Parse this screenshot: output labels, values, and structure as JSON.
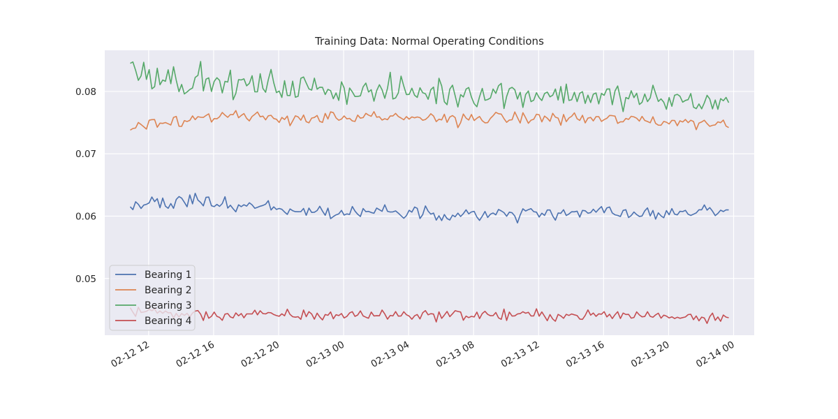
{
  "chart_data": {
    "type": "line",
    "title": "Training Data: Normal Operating Conditions",
    "xlabel": "",
    "ylabel": "",
    "x_start": "2019-02-12 10:52",
    "x_end": "2019-02-13 23:42",
    "n_points": 222,
    "xlim": [
      "2019-02-12 09:18",
      "2019-02-14 01:16"
    ],
    "ylim": [
      0.0409,
      0.0866
    ],
    "x_ticks": [
      {
        "label": "02-12 12",
        "t": "2019-02-12 12:00"
      },
      {
        "label": "02-12 16",
        "t": "2019-02-12 16:00"
      },
      {
        "label": "02-12 20",
        "t": "2019-02-12 20:00"
      },
      {
        "label": "02-13 00",
        "t": "2019-02-13 00:00"
      },
      {
        "label": "02-13 04",
        "t": "2019-02-13 04:00"
      },
      {
        "label": "02-13 08",
        "t": "2019-02-13 08:00"
      },
      {
        "label": "02-13 12",
        "t": "2019-02-13 12:00"
      },
      {
        "label": "02-13 16",
        "t": "2019-02-13 16:00"
      },
      {
        "label": "02-13 20",
        "t": "2019-02-13 20:00"
      },
      {
        "label": "02-14 00",
        "t": "2019-02-14 00:00"
      }
    ],
    "y_ticks": [
      {
        "label": "0.05",
        "v": 0.05
      },
      {
        "label": "0.06",
        "v": 0.06
      },
      {
        "label": "0.07",
        "v": 0.07
      },
      {
        "label": "0.08",
        "v": 0.08
      }
    ],
    "grid": true,
    "legend_position": "lower-left",
    "series": [
      {
        "name": "Bearing 1",
        "color": "#4c72b0",
        "start": 0.0615,
        "end": 0.061,
        "keypoints": [
          {
            "t": "2019-02-12 10:52",
            "v": 0.0615
          },
          {
            "t": "2019-02-12 13:00",
            "v": 0.0622
          },
          {
            "t": "2019-02-12 15:00",
            "v": 0.0624
          },
          {
            "t": "2019-02-12 18:00",
            "v": 0.0615
          },
          {
            "t": "2019-02-12 22:00",
            "v": 0.0608
          },
          {
            "t": "2019-02-13 04:00",
            "v": 0.0605
          },
          {
            "t": "2019-02-13 10:00",
            "v": 0.0603
          },
          {
            "t": "2019-02-13 16:00",
            "v": 0.0605
          },
          {
            "t": "2019-02-13 20:00",
            "v": 0.0606
          },
          {
            "t": "2019-02-13 23:42",
            "v": 0.061
          }
        ],
        "noise": 0.0006
      },
      {
        "name": "Bearing 2",
        "color": "#dd8452",
        "start": 0.0738,
        "end": 0.0742,
        "keypoints": [
          {
            "t": "2019-02-12 10:52",
            "v": 0.0742
          },
          {
            "t": "2019-02-12 12:00",
            "v": 0.075
          },
          {
            "t": "2019-02-12 15:00",
            "v": 0.0758
          },
          {
            "t": "2019-02-12 20:00",
            "v": 0.0758
          },
          {
            "t": "2019-02-13 00:00",
            "v": 0.0757
          },
          {
            "t": "2019-02-13 08:00",
            "v": 0.0757
          },
          {
            "t": "2019-02-13 14:00",
            "v": 0.0757
          },
          {
            "t": "2019-02-13 18:00",
            "v": 0.0754
          },
          {
            "t": "2019-02-13 23:42",
            "v": 0.0748
          }
        ],
        "noise": 0.0005
      },
      {
        "name": "Bearing 3",
        "color": "#55a868",
        "start": 0.0845,
        "end": 0.0782,
        "keypoints": [
          {
            "t": "2019-02-12 10:52",
            "v": 0.084
          },
          {
            "t": "2019-02-12 12:00",
            "v": 0.083
          },
          {
            "t": "2019-02-12 14:00",
            "v": 0.0818
          },
          {
            "t": "2019-02-12 18:00",
            "v": 0.081
          },
          {
            "t": "2019-02-12 22:00",
            "v": 0.0805
          },
          {
            "t": "2019-02-13 02:00",
            "v": 0.08
          },
          {
            "t": "2019-02-13 08:00",
            "v": 0.0798
          },
          {
            "t": "2019-02-13 14:00",
            "v": 0.0795
          },
          {
            "t": "2019-02-13 18:00",
            "v": 0.0788
          },
          {
            "t": "2019-02-13 22:00",
            "v": 0.0783
          },
          {
            "t": "2019-02-13 23:42",
            "v": 0.0782
          }
        ],
        "noise": 0.0011
      },
      {
        "name": "Bearing 4",
        "color": "#c44e52",
        "start": 0.0453,
        "end": 0.0437,
        "keypoints": [
          {
            "t": "2019-02-12 10:52",
            "v": 0.045
          },
          {
            "t": "2019-02-12 14:00",
            "v": 0.0442
          },
          {
            "t": "2019-02-12 20:00",
            "v": 0.0441
          },
          {
            "t": "2019-02-13 04:00",
            "v": 0.0442
          },
          {
            "t": "2019-02-13 12:00",
            "v": 0.0441
          },
          {
            "t": "2019-02-13 18:00",
            "v": 0.0441
          },
          {
            "t": "2019-02-13 23:42",
            "v": 0.0438
          }
        ],
        "noise": 0.00045
      }
    ]
  }
}
